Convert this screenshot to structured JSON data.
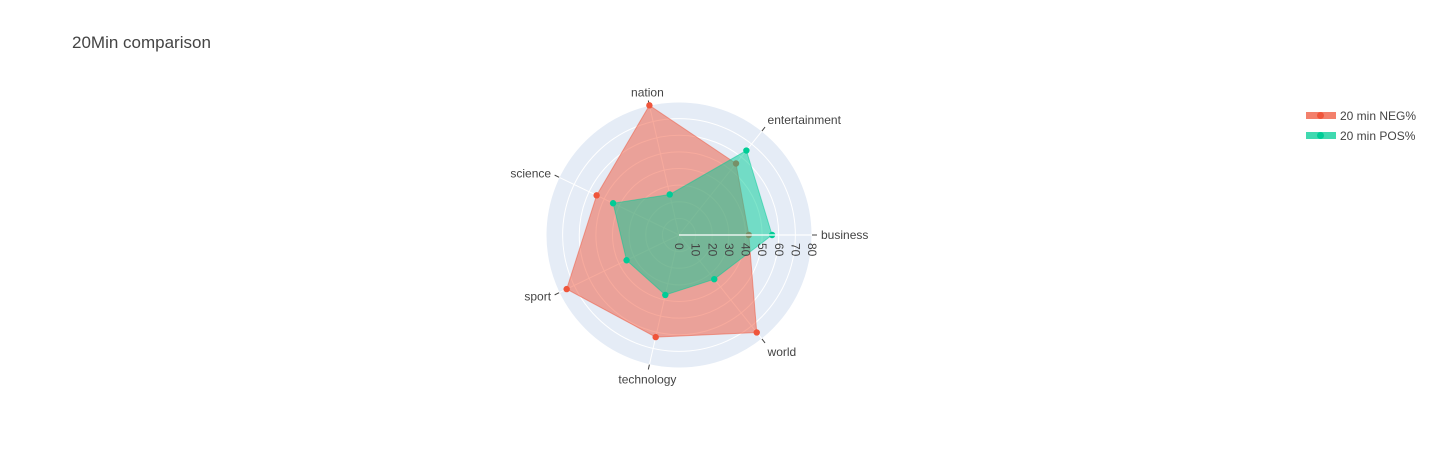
{
  "chart_data": {
    "type": "radar",
    "title": "20Min comparison",
    "categories": [
      "business",
      "entertainment",
      "nation",
      "science",
      "sport",
      "technology",
      "world"
    ],
    "series": [
      {
        "name": "20 min NEG%",
        "values": [
          42,
          55,
          80,
          55,
          75,
          63,
          75
        ],
        "color": "#ef553b"
      },
      {
        "name": "20 min POS%",
        "values": [
          56,
          65,
          25,
          44,
          35,
          37,
          34
        ],
        "color": "#00cc96"
      }
    ],
    "radial_range": [
      0,
      80
    ],
    "radial_ticks": [
      0,
      10,
      20,
      30,
      40,
      50,
      60,
      70,
      80
    ],
    "grid": true,
    "legend_position": "top-right"
  }
}
